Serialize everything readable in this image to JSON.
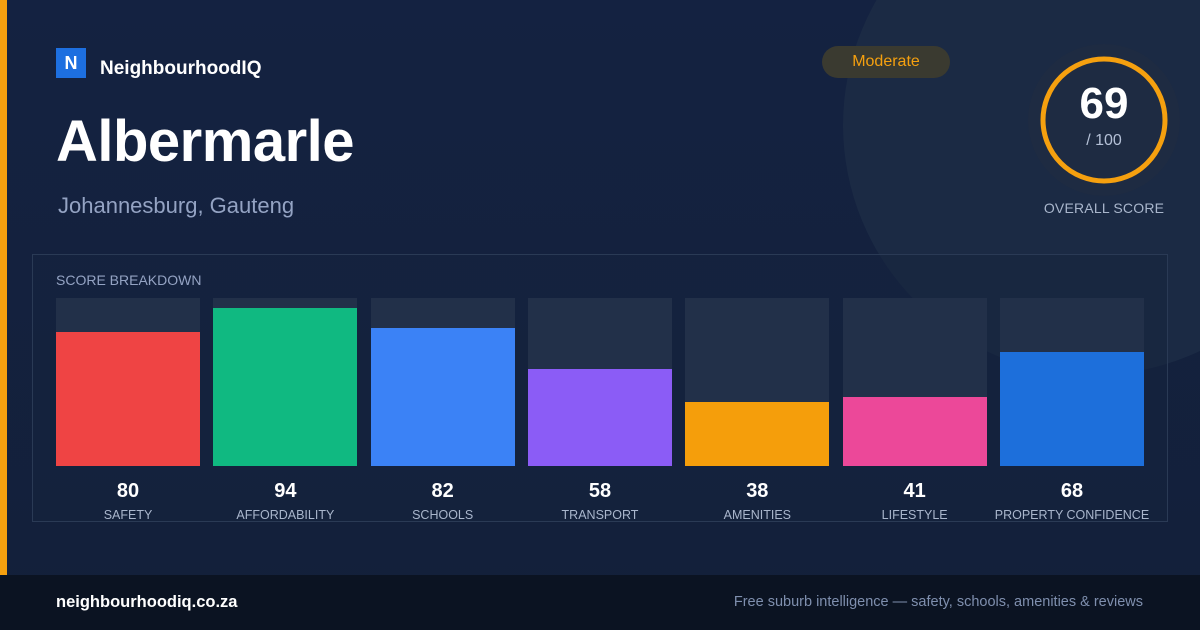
{
  "brand": {
    "logo_letter": "N",
    "name": "NeighbourhoodIQ"
  },
  "badge": {
    "label": "Moderate",
    "color": "#f5a00f"
  },
  "suburb": {
    "name": "Albermarle",
    "location": "Johannesburg, Gauteng"
  },
  "overall": {
    "score": 69,
    "score_text": "69",
    "max_text": "/ 100",
    "caption": "OVERALL SCORE",
    "color": "#f5a00f"
  },
  "breakdown": {
    "heading": "SCORE BREAKDOWN"
  },
  "chart_data": {
    "type": "bar",
    "ylim": [
      0,
      100
    ],
    "categories": [
      "SAFETY",
      "AFFORDABILITY",
      "SCHOOLS",
      "TRANSPORT",
      "AMENITIES",
      "LIFESTYLE",
      "PROPERTY CONFIDENCE"
    ],
    "values": [
      80,
      94,
      82,
      58,
      38,
      41,
      68
    ],
    "colors": [
      "#ef4444",
      "#10b981",
      "#3b82f6",
      "#8b5cf6",
      "#f59e0b",
      "#ec4899",
      "#1d6fdb"
    ]
  },
  "footer": {
    "url": "neighbourhoodiq.co.za",
    "tagline": "Free suburb intelligence — safety, schools, amenities & reviews"
  }
}
